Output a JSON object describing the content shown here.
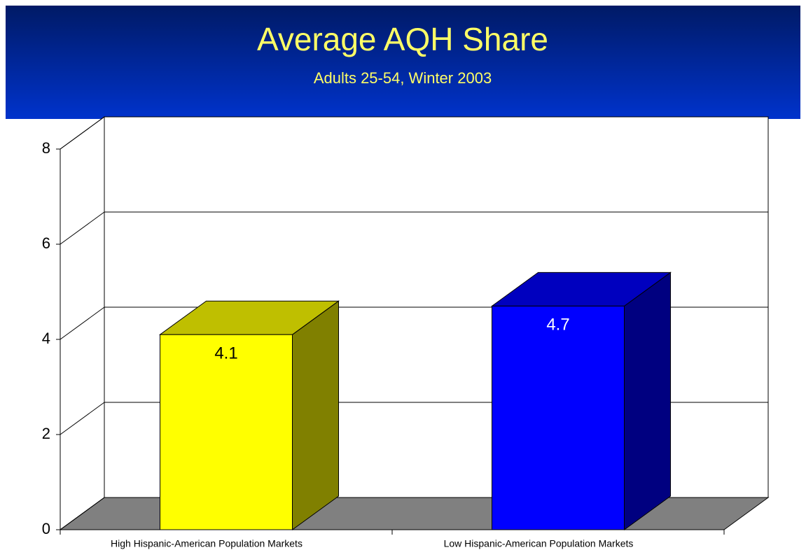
{
  "chart_data": {
    "type": "bar3d",
    "title": "Average AQH Share",
    "subtitle": "Adults 25-54, Winter 2003",
    "categories": [
      "High Hispanic-American Population Markets",
      "Low Hispanic-American Population Markets"
    ],
    "values": [
      4.1,
      4.7
    ],
    "colors": [
      "#ffff00",
      "#0000ff"
    ],
    "value_label_colors": [
      "#000000",
      "#ffffff"
    ],
    "ylim": [
      0,
      8
    ],
    "yticks": [
      0,
      2,
      4,
      6,
      8
    ],
    "grid": true
  }
}
